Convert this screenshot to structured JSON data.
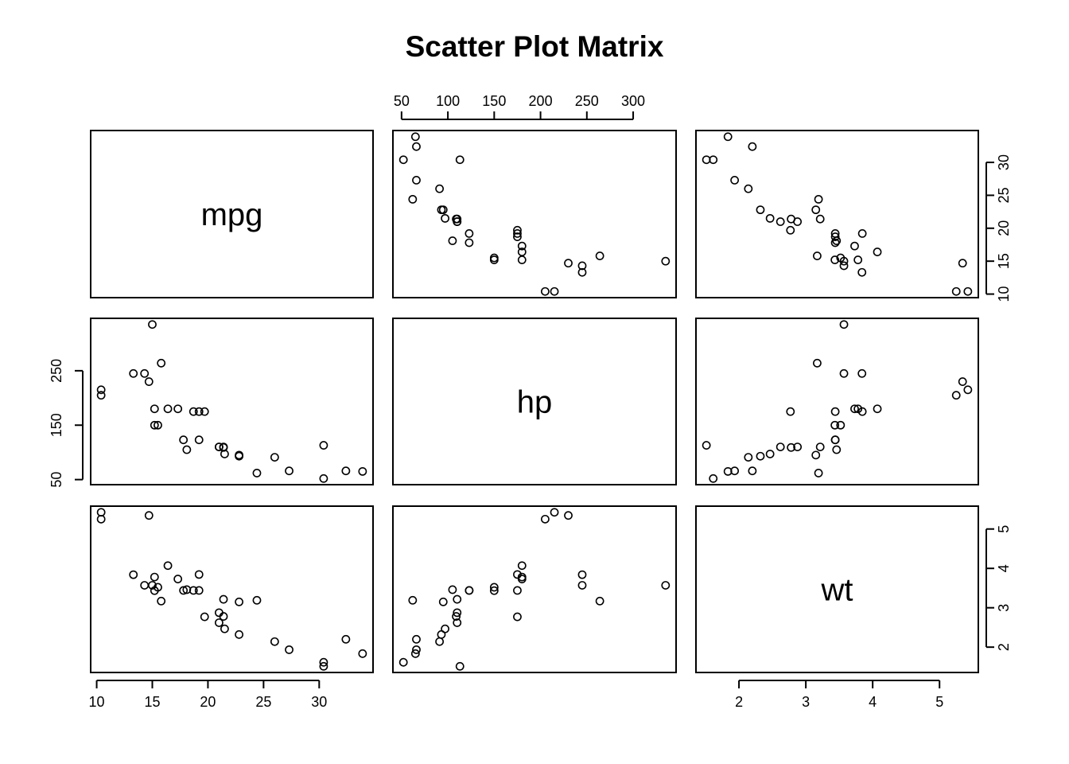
{
  "chart_data": {
    "type": "scatter",
    "title": "Scatter Plot Matrix",
    "variables": [
      "mpg",
      "hp",
      "wt"
    ],
    "grid": false,
    "ranges": {
      "mpg": [
        10.4,
        33.9
      ],
      "hp": [
        52,
        335
      ],
      "wt": [
        1.513,
        5.424
      ]
    },
    "ticks": {
      "mpg": [
        10,
        15,
        20,
        25,
        30
      ],
      "hp": [
        50,
        100,
        150,
        200,
        250,
        300
      ],
      "hp_left": [
        50,
        150,
        250
      ],
      "wt": [
        2,
        3,
        4,
        5
      ]
    },
    "observations": {
      "mpg": [
        21,
        21,
        22.8,
        21.4,
        18.7,
        18.1,
        14.3,
        24.4,
        22.8,
        19.2,
        17.8,
        16.4,
        17.3,
        15.2,
        10.4,
        10.4,
        14.7,
        32.4,
        30.4,
        33.9,
        21.5,
        15.5,
        15.2,
        13.3,
        19.2,
        27.3,
        26,
        30.4,
        15.8,
        19.7,
        15,
        21.4
      ],
      "hp": [
        110,
        110,
        93,
        110,
        175,
        105,
        245,
        62,
        95,
        123,
        123,
        180,
        180,
        180,
        205,
        215,
        230,
        66,
        52,
        65,
        97,
        150,
        150,
        245,
        175,
        66,
        91,
        113,
        264,
        175,
        335,
        109
      ],
      "wt": [
        2.62,
        2.875,
        2.32,
        3.215,
        3.44,
        3.46,
        3.57,
        3.19,
        3.15,
        3.44,
        3.44,
        4.07,
        3.73,
        3.78,
        5.25,
        5.424,
        5.345,
        2.2,
        1.615,
        1.835,
        2.465,
        3.52,
        3.435,
        3.84,
        3.845,
        1.935,
        2.14,
        1.513,
        3.17,
        2.77,
        3.57,
        2.78
      ]
    }
  }
}
